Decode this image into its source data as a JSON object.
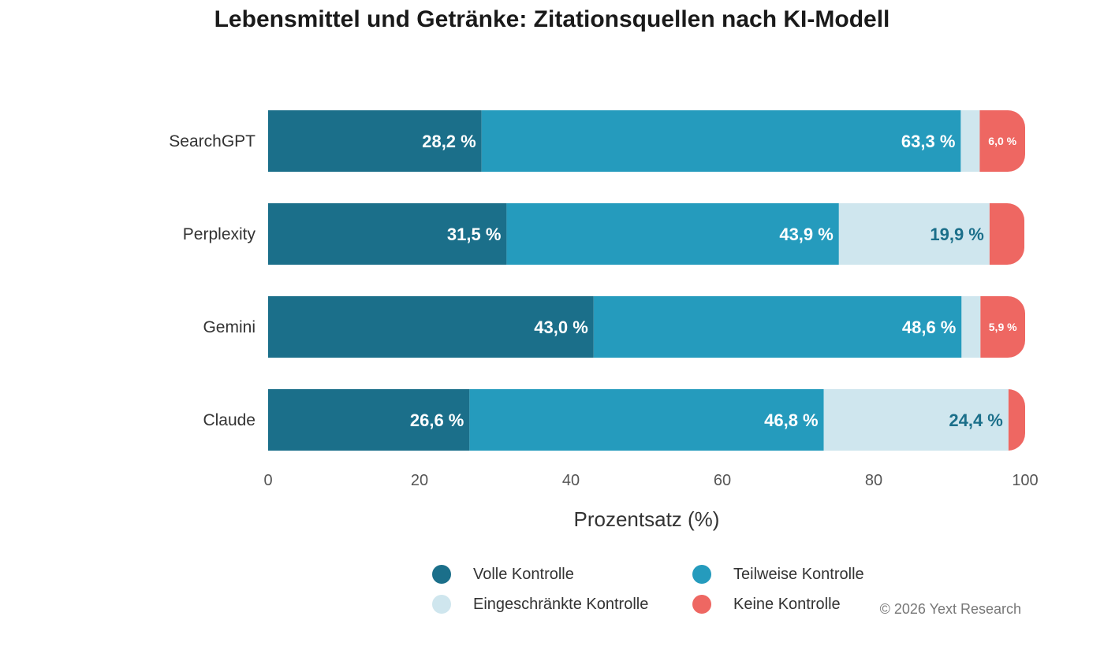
{
  "chart_data": {
    "type": "bar",
    "orientation": "horizontal",
    "stacked": true,
    "title": "Lebensmittel und Getränke: Zitationsquellen nach KI-Modell",
    "xlabel": "Prozentsatz (%)",
    "ylabel": "",
    "xlim": [
      0,
      100
    ],
    "xticks": [
      0,
      20,
      40,
      60,
      80,
      100
    ],
    "categories": [
      "SearchGPT",
      "Perplexity",
      "Gemini",
      "Claude"
    ],
    "series": [
      {
        "name": "Volle Kontrolle",
        "color": "#1b6f8a",
        "label_color": "#ffffff",
        "values": [
          28.2,
          31.5,
          43.0,
          26.6
        ],
        "labels": [
          "28,2 %",
          "31,5 %",
          "43,0 %",
          "26,6 %"
        ]
      },
      {
        "name": "Teilweise Kontrolle",
        "color": "#259bbd",
        "label_color": "#ffffff",
        "values": [
          63.3,
          43.9,
          48.6,
          46.8
        ],
        "labels": [
          "63,3 %",
          "43,9 %",
          "48,6 %",
          "46,8 %"
        ]
      },
      {
        "name": "Eingeschränkte Kontrolle",
        "color": "#cfe6ee",
        "label_color": "#1b6f8a",
        "values": [
          2.5,
          19.9,
          2.5,
          24.4
        ],
        "labels": [
          "",
          "19,9 %",
          "",
          "24,4 %"
        ]
      },
      {
        "name": "Keine Kontrolle",
        "color": "#ee6762",
        "label_color": "#ffffff",
        "values": [
          6.0,
          4.6,
          5.9,
          2.2
        ],
        "labels": [
          "6,0 %",
          "",
          "5,9 %",
          ""
        ]
      }
    ],
    "legend_position": "bottom",
    "grid": false
  },
  "footer": {
    "copyright": "© 2026 Yext Research"
  }
}
